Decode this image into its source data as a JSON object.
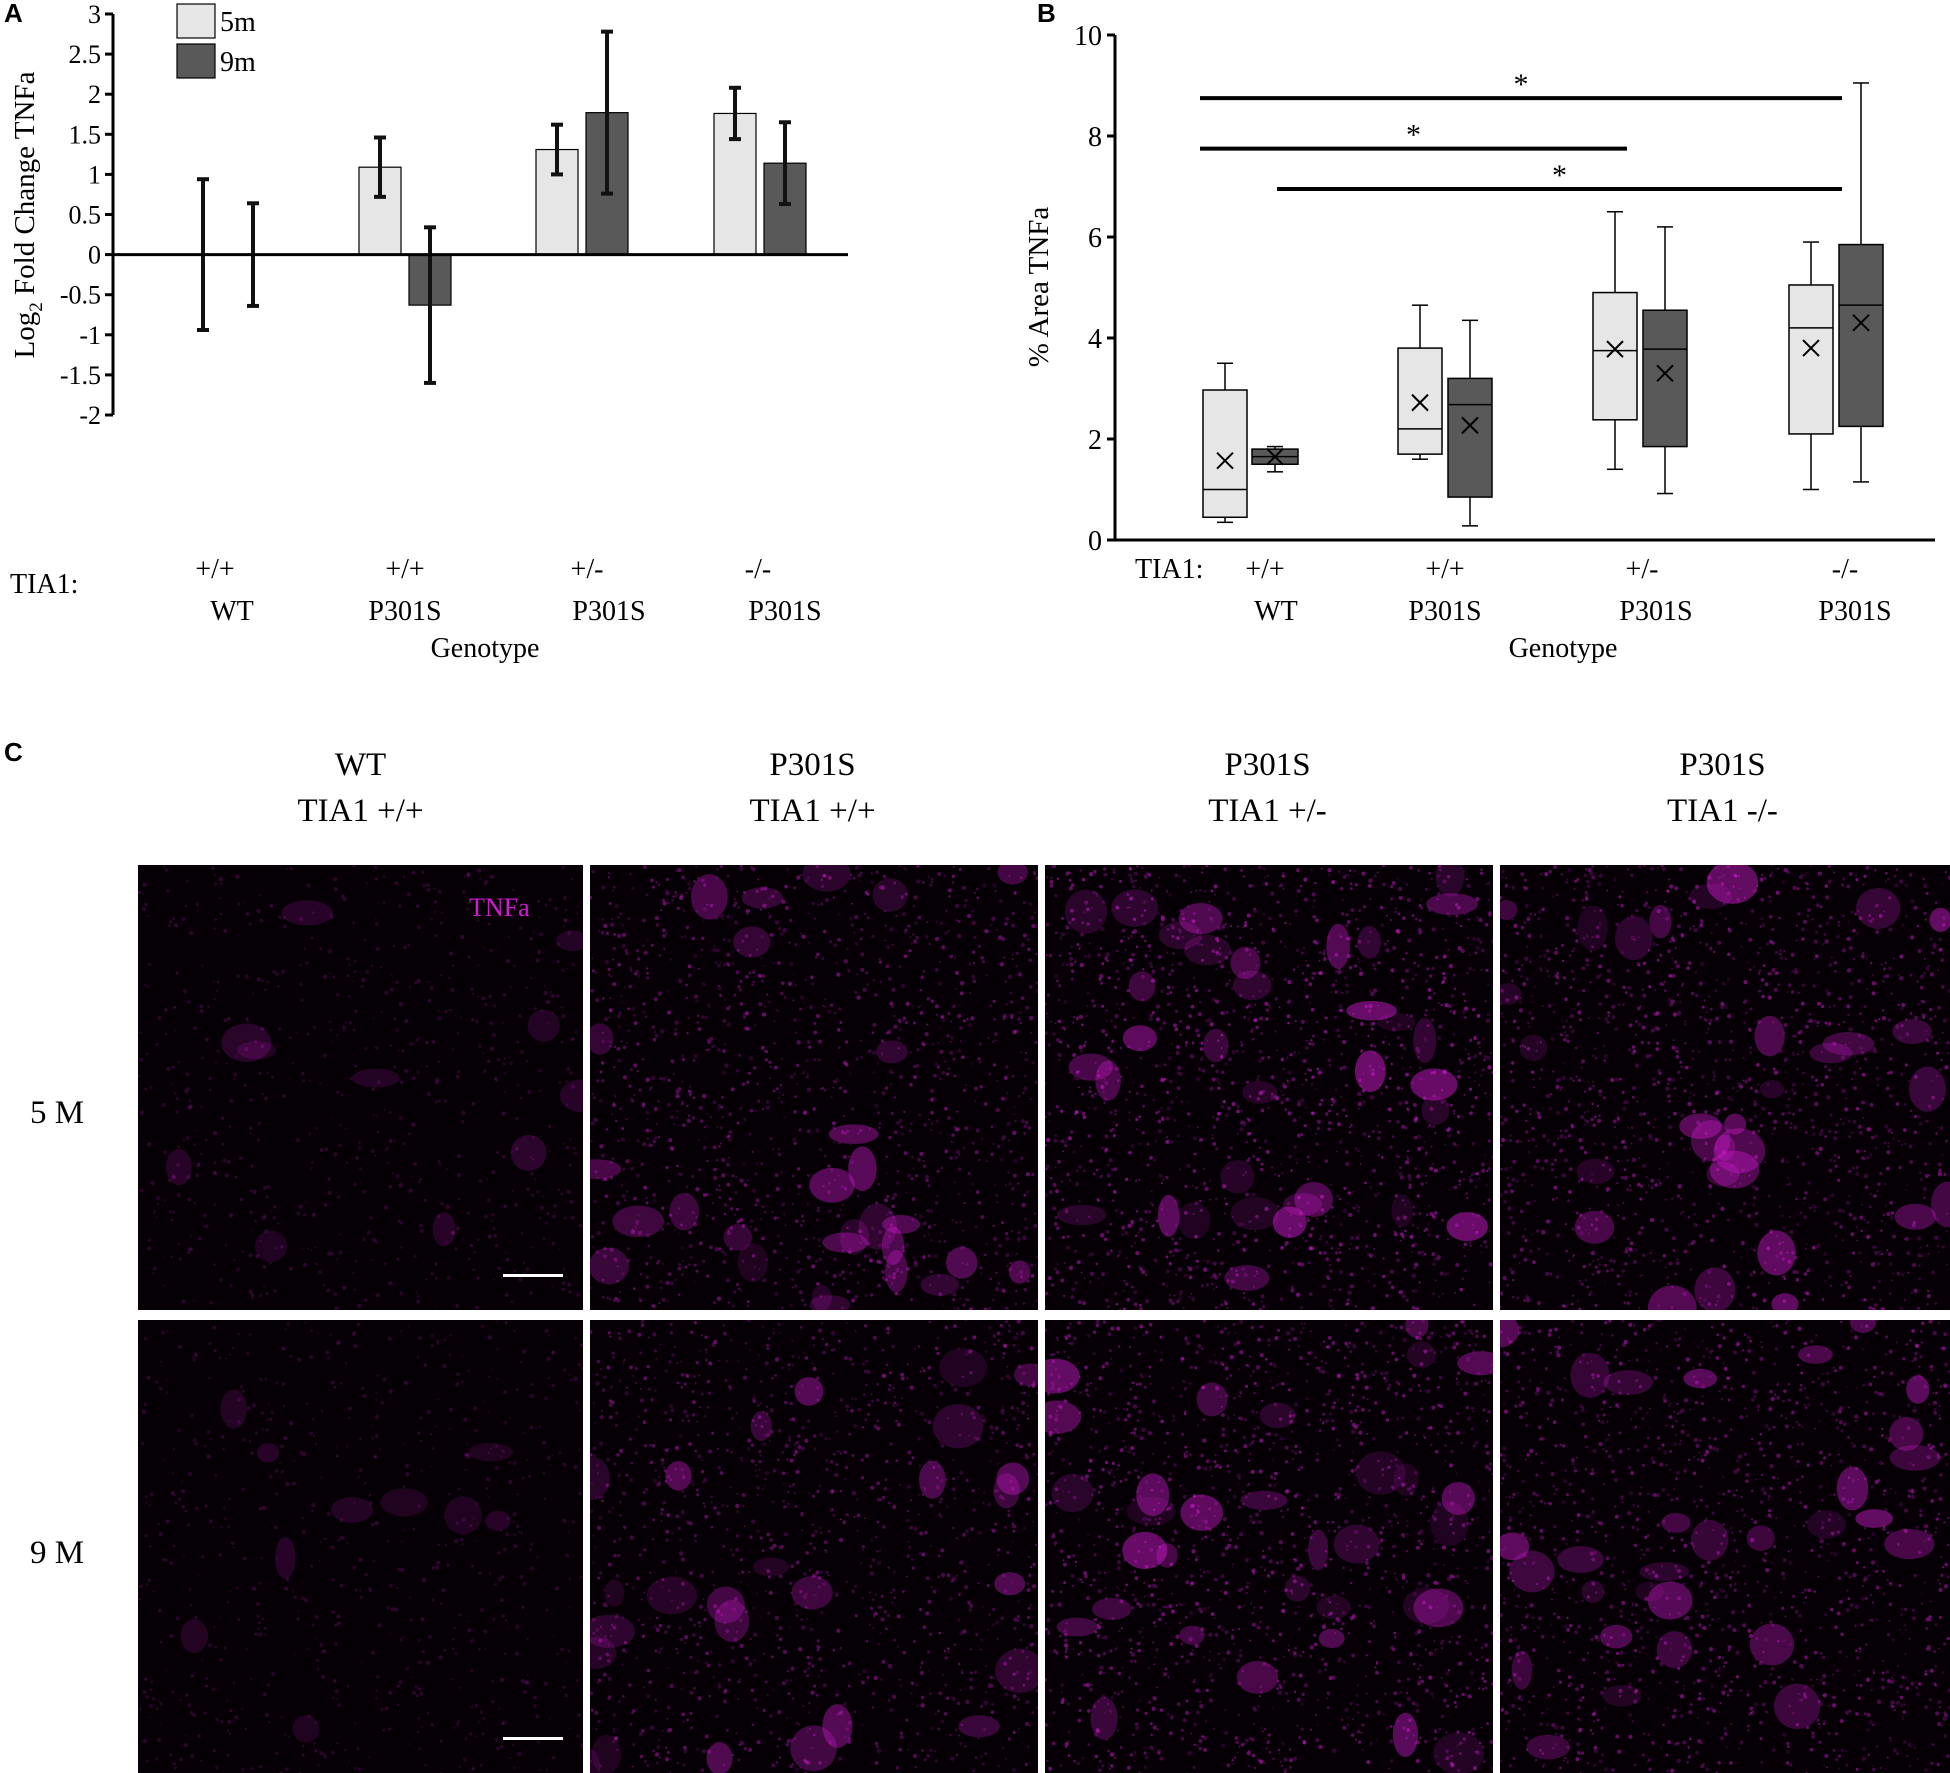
{
  "panels": {
    "a_letter": "A",
    "b_letter": "B",
    "c_letter": "C"
  },
  "chart_data": [
    {
      "type": "bar",
      "panel": "A",
      "ylabel_main": "Log",
      "ylabel_sub": "2",
      "ylabel_rest": " Fold Change TNFa",
      "xlabel": "Genotype",
      "category_prefix": "TIA1:",
      "categories": [
        {
          "top": "+/+",
          "bottom": "WT"
        },
        {
          "top": "+/+",
          "bottom": "P301S"
        },
        {
          "top": "+/-",
          "bottom": "P301S"
        },
        {
          "top": "-/-",
          "bottom": "P301S"
        }
      ],
      "ylim": [
        -2,
        3
      ],
      "yticks": [
        "3",
        "2.5",
        "2",
        "1.5",
        "1",
        "0.5",
        "0",
        "-0.5",
        "-1",
        "-1.5",
        "-2"
      ],
      "legend": {
        "position": "top-left"
      },
      "series": [
        {
          "name": "5m",
          "color": "#e6e6e6",
          "values": [
            0,
            1.09,
            1.31,
            1.76
          ],
          "errors": [
            0.94,
            0.37,
            0.31,
            0.32
          ]
        },
        {
          "name": "9m",
          "color": "#595959",
          "values": [
            0,
            -0.63,
            1.77,
            1.14
          ],
          "errors": [
            0.64,
            0.97,
            1.01,
            0.51
          ]
        }
      ]
    },
    {
      "type": "box",
      "panel": "B",
      "ylabel": "% Area TNFa",
      "xlabel": "Genotype",
      "category_prefix": "TIA1:",
      "categories": [
        {
          "top": "+/+",
          "bottom": "WT"
        },
        {
          "top": "+/+",
          "bottom": "P301S"
        },
        {
          "top": "+/-",
          "bottom": "P301S"
        },
        {
          "top": "-/-",
          "bottom": "P301S"
        }
      ],
      "ylim": [
        0,
        10
      ],
      "yticks": [
        "0",
        "2",
        "4",
        "6",
        "8",
        "10"
      ],
      "series": [
        {
          "name": "5m",
          "color": "#e6e6e6",
          "boxes": [
            {
              "min": 0.35,
              "q1": 0.45,
              "median": 1.0,
              "q3": 2.97,
              "max": 3.5,
              "mean": 1.57
            },
            {
              "min": 1.6,
              "q1": 1.7,
              "median": 2.2,
              "q3": 3.8,
              "max": 4.65,
              "mean": 2.72
            },
            {
              "min": 1.4,
              "q1": 2.38,
              "median": 3.75,
              "q3": 4.9,
              "max": 6.5,
              "mean": 3.78
            },
            {
              "min": 1.0,
              "q1": 2.1,
              "median": 4.2,
              "q3": 5.05,
              "max": 5.9,
              "mean": 3.8
            }
          ]
        },
        {
          "name": "9m",
          "color": "#595959",
          "boxes": [
            {
              "min": 1.35,
              "q1": 1.5,
              "median": 1.65,
              "q3": 1.8,
              "max": 1.85,
              "mean": 1.65
            },
            {
              "min": 0.28,
              "q1": 0.85,
              "median": 2.68,
              "q3": 3.2,
              "max": 4.35,
              "mean": 2.27
            },
            {
              "min": 0.92,
              "q1": 1.85,
              "median": 3.78,
              "q3": 4.55,
              "max": 6.2,
              "mean": 3.3
            },
            {
              "min": 1.15,
              "q1": 2.25,
              "median": 4.65,
              "q3": 5.85,
              "max": 9.05,
              "mean": 4.3
            }
          ]
        }
      ],
      "significance": [
        {
          "from": 0,
          "to": 3,
          "y": 8.75,
          "label": "*"
        },
        {
          "from": 0,
          "to": 2,
          "y": 7.75,
          "label": "*"
        },
        {
          "from": 0.5,
          "to": 3,
          "y": 6.95,
          "label": "*"
        }
      ]
    }
  ],
  "micrographs": {
    "columns": [
      {
        "line1": "WT",
        "line2": "TIA1 +/+"
      },
      {
        "line1": "P301S",
        "line2": "TIA1 +/+"
      },
      {
        "line1": "P301S",
        "line2": "TIA1 +/-"
      },
      {
        "line1": "P301S",
        "line2": "TIA1 -/-"
      }
    ],
    "rows": [
      "5 M",
      "9 M"
    ],
    "stain_label": "TNFa",
    "stain_color": "#d21ad2",
    "brightness": [
      [
        0.12,
        0.55,
        0.7,
        0.62
      ],
      [
        0.1,
        0.5,
        0.65,
        0.6
      ]
    ]
  }
}
